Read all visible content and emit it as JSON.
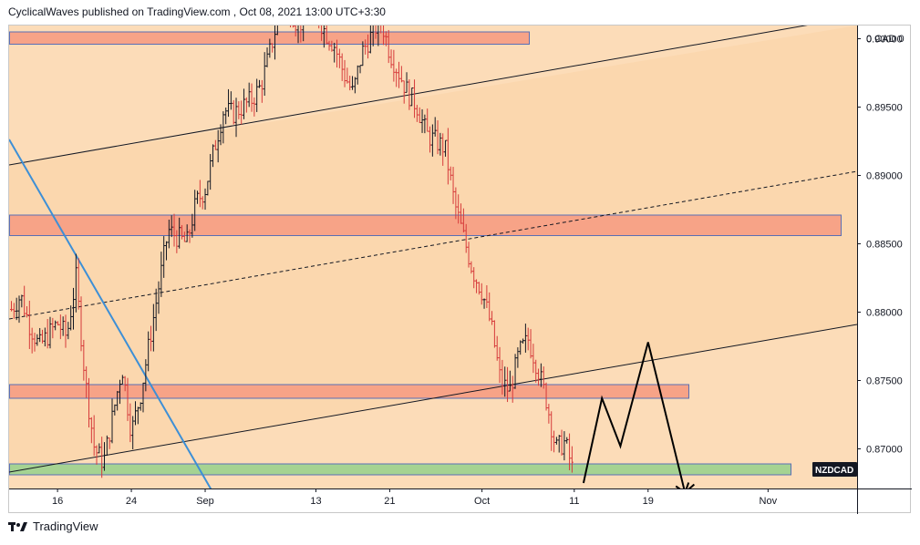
{
  "header": {
    "publisher": "CyclicalWaves",
    "platform": "TradingView.com",
    "timestamp": "Oct 08, 2021 13:00 UTC+3:30"
  },
  "footer": {
    "brand": "TradingView"
  },
  "colors": {
    "background_fill": "#fcdcb8",
    "channel_fill": "#fbd7ae",
    "resistance_zone": "#f7a387",
    "support_zone": "#a5d392",
    "candle_up": "#131722",
    "candle_down": "#d63a3a",
    "trendline_blue": "#3d8fd6",
    "projection": "#000000"
  },
  "chart_data": {
    "type": "ohlc",
    "symbol": "NZDCAD",
    "price_axis": {
      "label": "0 CAD 0",
      "ticks": [
        "0.90000",
        "0.89500",
        "0.89000",
        "0.88500",
        "0.88000",
        "0.87500",
        "0.87000"
      ],
      "range": [
        0.8664,
        0.905
      ]
    },
    "time_axis": {
      "ticks": [
        "16",
        "24",
        "Sep",
        "13",
        "21",
        "Oct",
        "11",
        "19",
        "Nov"
      ]
    },
    "zones": [
      {
        "kind": "resistance",
        "low": 0.8996,
        "high": 0.9005
      },
      {
        "kind": "resistance",
        "low": 0.8856,
        "high": 0.8871
      },
      {
        "kind": "resistance",
        "low": 0.8737,
        "high": 0.8747
      },
      {
        "kind": "support",
        "low": 0.8681,
        "high": 0.8689
      }
    ],
    "price_path": [
      [
        "Aug 11",
        0.8802
      ],
      [
        "Aug 12",
        0.8812
      ],
      [
        "Aug 13",
        0.879
      ],
      [
        "Aug 14",
        0.8775
      ],
      [
        "Aug 16",
        0.8792
      ],
      [
        "Aug 17",
        0.8782
      ],
      [
        "Aug 18",
        0.8825
      ],
      [
        "Aug 19",
        0.875
      ],
      [
        "Aug 20",
        0.87
      ],
      [
        "Aug 21",
        0.869
      ],
      [
        "Aug 23",
        0.876
      ],
      [
        "Aug 24",
        0.8712
      ],
      [
        "Aug 25",
        0.874
      ],
      [
        "Aug 26",
        0.878
      ],
      [
        "Aug 27",
        0.882
      ],
      [
        "Aug 28",
        0.886
      ],
      [
        "Aug 30",
        0.885
      ],
      [
        "Aug 31",
        0.888
      ],
      [
        "Sep 1",
        0.889
      ],
      [
        "Sep 2",
        0.892
      ],
      [
        "Sep 3",
        0.8948
      ],
      [
        "Sep 4",
        0.8945
      ],
      [
        "Sep 6",
        0.8955
      ],
      [
        "Sep 7",
        0.8965
      ],
      [
        "Sep 8",
        0.899
      ],
      [
        "Sep 9",
        0.9018
      ],
      [
        "Sep 10",
        0.9025
      ],
      [
        "Sep 11",
        0.901
      ],
      [
        "Sep 13",
        0.902
      ],
      [
        "Sep 14",
        0.9005
      ],
      [
        "Sep 15",
        0.8995
      ],
      [
        "Sep 16",
        0.8975
      ],
      [
        "Sep 17",
        0.896
      ],
      [
        "Sep 18",
        0.899
      ],
      [
        "Sep 20",
        0.9015
      ],
      [
        "Sep 21",
        0.899
      ],
      [
        "Sep 22",
        0.8975
      ],
      [
        "Sep 23",
        0.896
      ],
      [
        "Sep 24",
        0.895
      ],
      [
        "Sep 25",
        0.893
      ],
      [
        "Sep 27",
        0.892
      ],
      [
        "Sep 28",
        0.888
      ],
      [
        "Sep 29",
        0.8855
      ],
      [
        "Sep 30",
        0.883
      ],
      [
        "Oct 1",
        0.8815
      ],
      [
        "Oct 2",
        0.879
      ],
      [
        "Oct 3",
        0.875
      ],
      [
        "Oct 4",
        0.8742
      ],
      [
        "Oct 5",
        0.877
      ],
      [
        "Oct 6",
        0.878
      ],
      [
        "Oct 7",
        0.876
      ],
      [
        "Oct 8",
        0.8735
      ],
      [
        "Oct 9",
        0.87
      ],
      [
        "Oct 10",
        0.8705
      ],
      [
        "Oct 11",
        0.868
      ]
    ],
    "projection_path": [
      [
        "Oct 12",
        0.8675
      ],
      [
        "Oct 14",
        0.8737
      ],
      [
        "Oct 16",
        0.8702
      ],
      [
        "Oct 19",
        0.8778
      ],
      [
        "Oct 23",
        0.8668
      ],
      [
        "Oct 24",
        0.8674
      ]
    ]
  }
}
